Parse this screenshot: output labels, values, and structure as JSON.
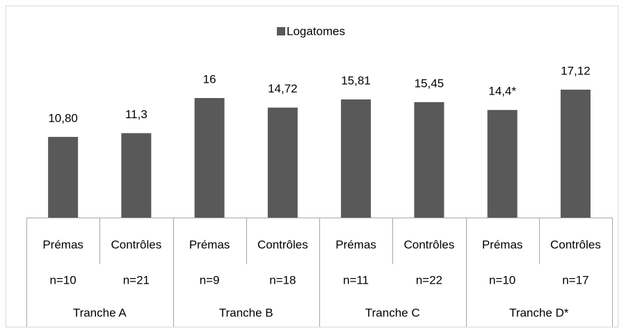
{
  "chart_data": {
    "type": "bar",
    "categories": [
      "Prémas",
      "Contrôles",
      "Prémas",
      "Contrôles",
      "Prémas",
      "Contrôles",
      "Prémas",
      "Contrôles"
    ],
    "counts": [
      "n=10",
      "n=21",
      "n=9",
      "n=18",
      "n=11",
      "n=22",
      "n=10",
      "n=17"
    ],
    "groups": [
      "Tranche A",
      "Tranche B",
      "Tranche C",
      "Tranche D*"
    ],
    "series": [
      {
        "name": "Logatomes",
        "color": "#595959",
        "values": [
          10.8,
          11.3,
          16,
          14.72,
          15.81,
          15.45,
          14.4,
          17.12
        ],
        "value_labels": [
          "10,80",
          "11,3",
          "16",
          "14,72",
          "15,81",
          "15,45",
          "14,4*",
          "17,12"
        ]
      }
    ],
    "ylim": [
      0,
      20
    ],
    "legend": "top"
  }
}
